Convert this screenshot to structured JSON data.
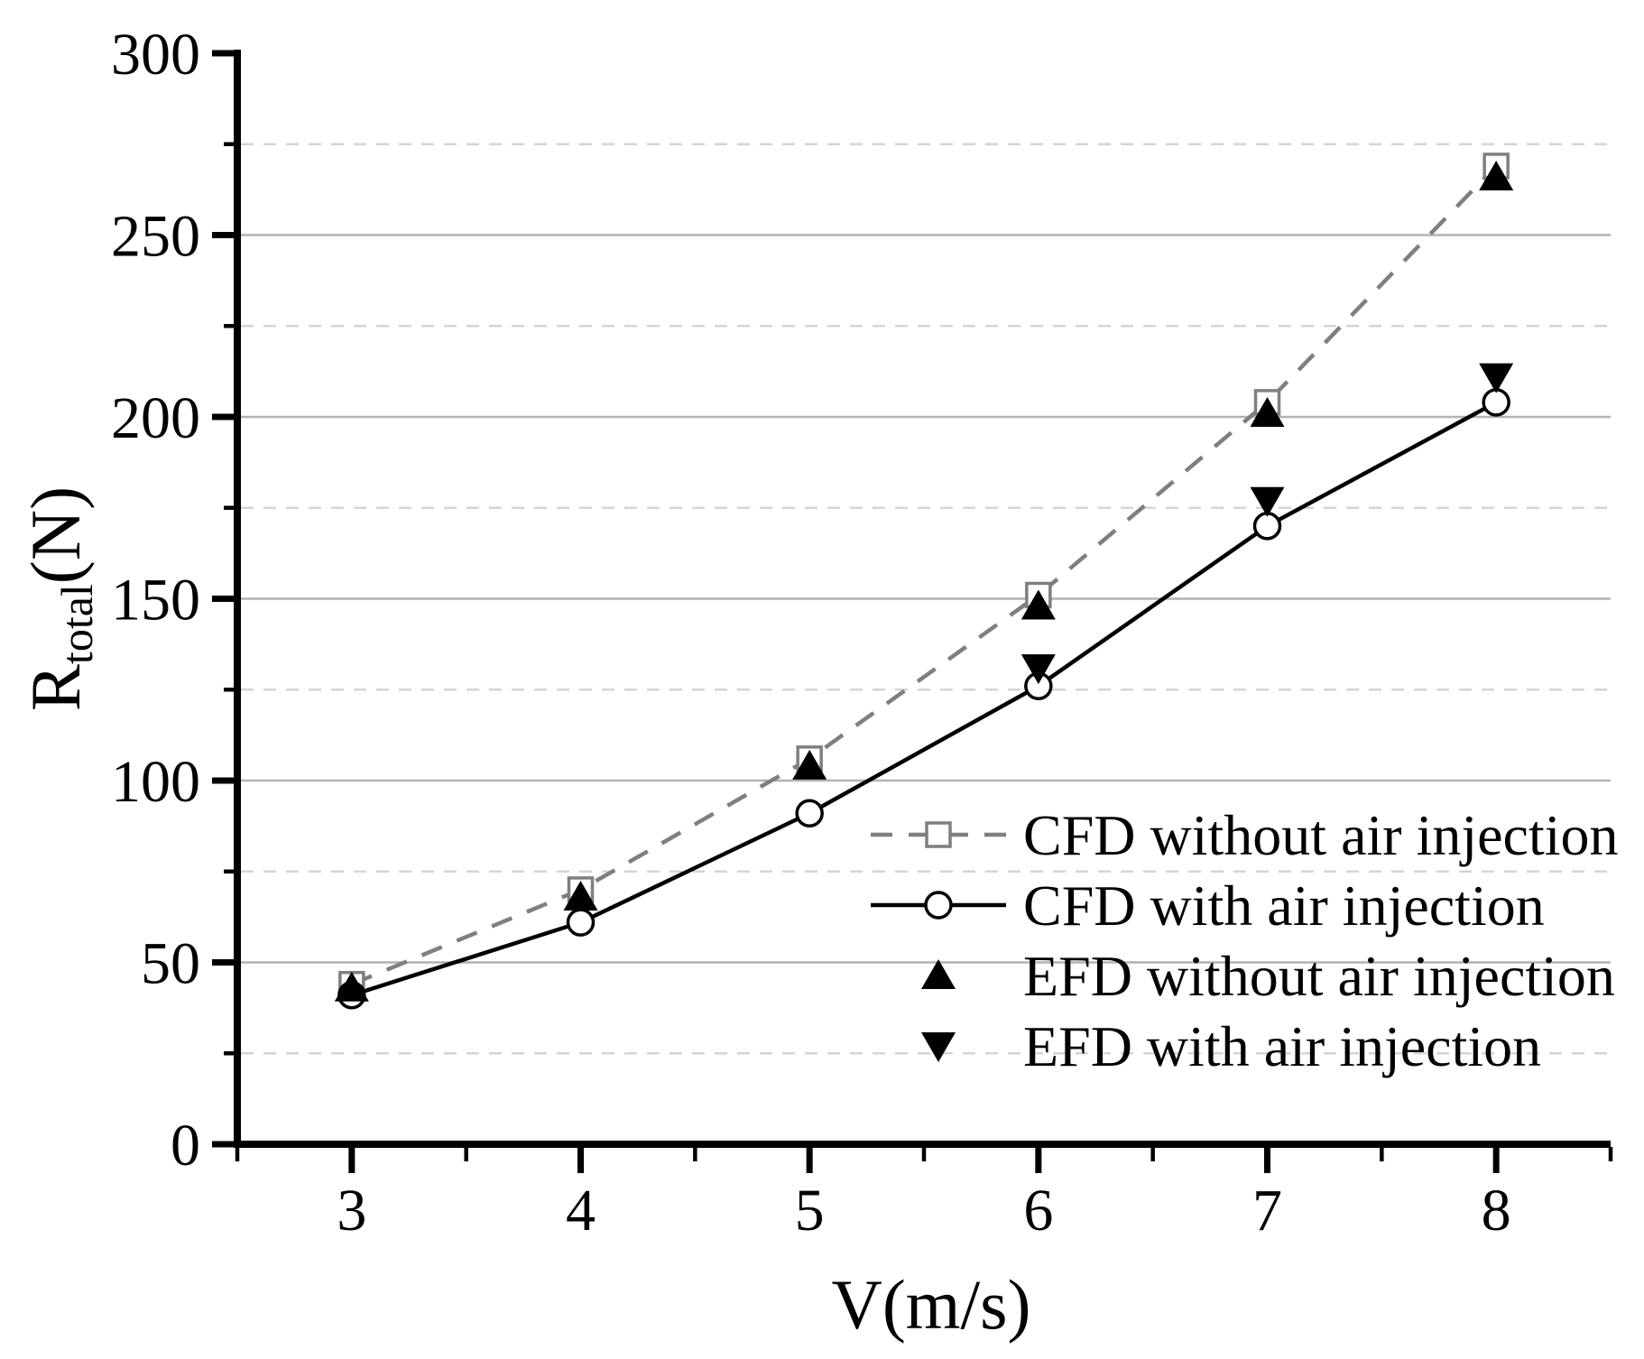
{
  "figure": {
    "kind": "scientific line chart",
    "background": "#ffffff"
  },
  "chart_data": {
    "type": "line",
    "title": "",
    "xlabel": "V(m/s)",
    "ylabel_main": "R",
    "ylabel_sub": "total",
    "ylabel_unit": "(N)",
    "xlim": [
      2.5,
      8.5
    ],
    "ylim": [
      0,
      300
    ],
    "x_major_ticks": [
      3,
      4,
      5,
      6,
      7,
      8
    ],
    "x_minor_ticks": [
      2.5,
      3.5,
      4.5,
      5.5,
      6.5,
      7.5,
      8.5
    ],
    "y_major_ticks": [
      0,
      50,
      100,
      150,
      200,
      250,
      300
    ],
    "y_minor_ticks": [
      25,
      75,
      125,
      175,
      225,
      275
    ],
    "grid": {
      "major": "solid",
      "minor": "dashed",
      "major_color": "#b2b2b2",
      "minor_color": "#d4d4d4"
    },
    "legend_position": "inside-lower-right",
    "series": [
      {
        "name": "CFD without air injection",
        "marker": "open-square",
        "line": "dashed",
        "color": "#7f7f7f",
        "x": [
          3,
          4,
          5,
          6,
          7,
          8
        ],
        "values": [
          44,
          70,
          106,
          151,
          204,
          269
        ]
      },
      {
        "name": "CFD with air injection",
        "marker": "open-circle",
        "line": "solid",
        "color": "#000000",
        "x": [
          3,
          4,
          5,
          6,
          7,
          8
        ],
        "values": [
          41,
          61,
          91,
          126,
          170,
          204
        ]
      },
      {
        "name": "EFD without air injection",
        "marker": "filled-triangle-up",
        "line": "none",
        "color": "#000000",
        "x": [
          3,
          4,
          5,
          6,
          7,
          8
        ],
        "values": [
          43,
          68,
          104,
          148,
          201,
          266
        ]
      },
      {
        "name": "EFD with air injection",
        "marker": "filled-triangle-down",
        "line": "none",
        "color": "#000000",
        "x": [
          6,
          7,
          8
        ],
        "values": [
          131,
          177,
          211
        ]
      }
    ]
  }
}
